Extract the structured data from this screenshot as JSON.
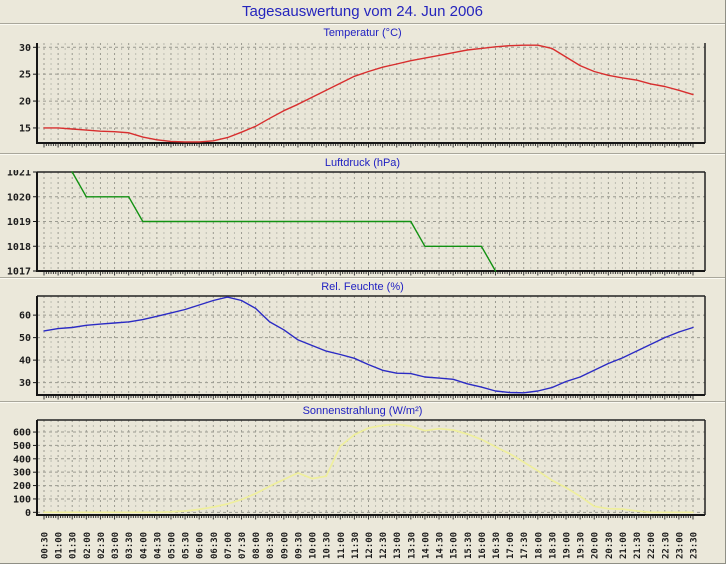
{
  "page": {
    "title": "Tagesauswertung vom 24. Jun 2006"
  },
  "colors": {
    "background": "#ebe8da",
    "plot_background": "#e9e6d8",
    "grid_major": "#9a9a90",
    "grid_minor": "#bdbdb2",
    "axis": "#161616",
    "title_text": "#2525bd",
    "temperature_line": "#d82e2e",
    "pressure_line": "#129112",
    "humidity_line": "#2b2bc4",
    "solar_line": "#efef9c"
  },
  "x_axis": {
    "labels": [
      "00:30",
      "01:00",
      "01:30",
      "02:00",
      "02:30",
      "03:00",
      "03:30",
      "04:00",
      "04:30",
      "05:00",
      "05:30",
      "06:00",
      "06:30",
      "07:00",
      "07:30",
      "08:00",
      "08:30",
      "09:00",
      "09:30",
      "10:00",
      "10:30",
      "11:00",
      "11:30",
      "12:00",
      "12:30",
      "13:00",
      "13:30",
      "14:00",
      "14:30",
      "15:00",
      "15:30",
      "16:00",
      "16:30",
      "17:00",
      "17:30",
      "18:00",
      "18:30",
      "19:00",
      "19:30",
      "20:00",
      "20:30",
      "21:00",
      "21:30",
      "22:00",
      "22:30",
      "23:00",
      "23:30"
    ],
    "step_minutes": 30
  },
  "chart_data": [
    {
      "type": "line",
      "title": "Temperatur (°C)",
      "ylabel": "°C",
      "color": "#d82e2e",
      "y_ticks": [
        15,
        20,
        25,
        30
      ],
      "ylim": [
        12.2,
        30.8
      ],
      "values": [
        15.0,
        15.0,
        14.8,
        14.6,
        14.4,
        14.3,
        14.1,
        13.3,
        12.8,
        12.5,
        12.4,
        12.4,
        12.6,
        13.2,
        14.2,
        15.3,
        16.8,
        18.2,
        19.4,
        20.7,
        22.0,
        23.3,
        24.6,
        25.5,
        26.3,
        26.9,
        27.5,
        28.0,
        28.5,
        29.0,
        29.5,
        29.8,
        30.1,
        30.3,
        30.4,
        30.4,
        29.8,
        28.2,
        26.6,
        25.5,
        24.8,
        24.3,
        23.9,
        23.2,
        22.7,
        22.0,
        21.2
      ]
    },
    {
      "type": "line",
      "title": "Luftdruck (hPa)",
      "ylabel": "hPa",
      "color": "#129112",
      "y_ticks": [
        1017,
        1018,
        1019,
        1020,
        1021
      ],
      "ylim": [
        1017,
        1021
      ],
      "values": [
        null,
        null,
        1021,
        1020,
        1020,
        1020,
        1020,
        1019,
        1019,
        1019,
        1019,
        1019,
        1019,
        1019,
        1019,
        1019,
        1019,
        1019,
        1019,
        1019,
        1019,
        1019,
        1019,
        1019,
        1019,
        1019,
        1019,
        1018,
        1018,
        1018,
        1018,
        1018,
        1017,
        null,
        null,
        null,
        null,
        null,
        null,
        null,
        null,
        null,
        null,
        null,
        null,
        null,
        null
      ]
    },
    {
      "type": "line",
      "title": "Rel. Feuchte (%)",
      "ylabel": "%",
      "color": "#2b2bc4",
      "y_ticks": [
        30,
        40,
        50,
        60
      ],
      "ylim": [
        24.5,
        68.5
      ],
      "values": [
        53,
        54,
        54.5,
        55.5,
        56,
        56.5,
        57,
        58,
        59.5,
        61,
        62.5,
        64.5,
        66.5,
        68,
        66.5,
        63,
        57,
        53.5,
        49,
        46.5,
        44,
        42.5,
        40.8,
        38,
        35.5,
        34.2,
        34,
        32.5,
        32,
        31.5,
        29.5,
        28,
        26.3,
        25.6,
        25.5,
        26.3,
        27.8,
        30.5,
        32.5,
        35.5,
        38.5,
        41,
        44,
        47,
        50,
        52.5,
        54.5
      ]
    },
    {
      "type": "line",
      "title": "Sonnenstrahlung (W/m²)",
      "ylabel": "W/m²",
      "color": "#efef9c",
      "y_ticks": [
        0,
        100,
        200,
        300,
        400,
        500,
        600
      ],
      "ylim": [
        -20,
        690
      ],
      "values": [
        0,
        0,
        0,
        0,
        0,
        0,
        0,
        0,
        0,
        3,
        10,
        22,
        40,
        62,
        95,
        140,
        195,
        245,
        295,
        252,
        270,
        495,
        580,
        630,
        650,
        658,
        645,
        610,
        625,
        615,
        585,
        545,
        490,
        438,
        375,
        310,
        240,
        185,
        120,
        45,
        27,
        24,
        10,
        0,
        0,
        0,
        0
      ]
    }
  ]
}
